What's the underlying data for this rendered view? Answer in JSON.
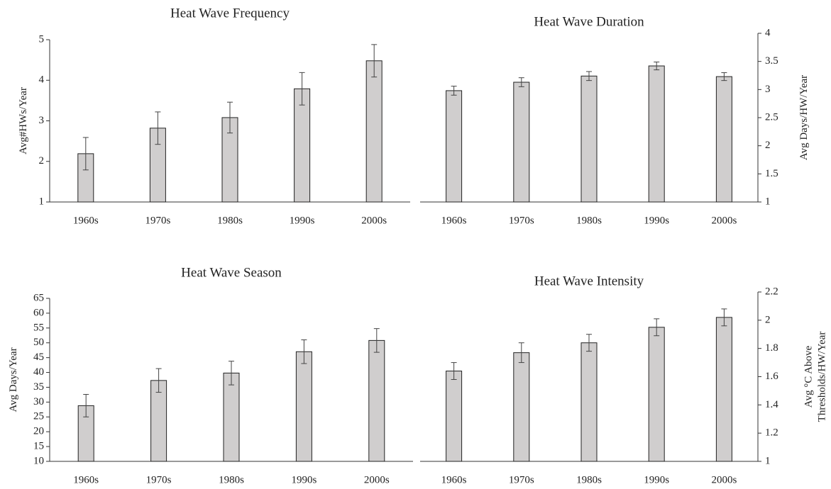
{
  "chart_data": [
    {
      "type": "bar",
      "title": "Heat Wave Frequency",
      "y_label": [
        "Avg#HWs/Year"
      ],
      "y_axis_side": "left",
      "categories": [
        "1960s",
        "1970s",
        "1980s",
        "1990s",
        "2000s"
      ],
      "values": [
        2.19,
        2.82,
        3.08,
        3.79,
        4.48
      ],
      "errors": [
        0.4,
        0.4,
        0.38,
        0.4,
        0.4
      ],
      "color": "#d0cece",
      "ylim": [
        1,
        5
      ],
      "yticks": [
        1,
        2,
        3,
        4,
        5
      ]
    },
    {
      "type": "bar",
      "title": "Heat Wave Duration",
      "y_label": [
        "Avg Days/HW/Year"
      ],
      "y_axis_side": "right",
      "categories": [
        "1960s",
        "1970s",
        "1980s",
        "1990s",
        "2000s"
      ],
      "values": [
        2.98,
        3.13,
        3.24,
        3.42,
        3.23
      ],
      "errors": [
        0.08,
        0.08,
        0.08,
        0.07,
        0.07
      ],
      "color": "#d0cece",
      "ylim": [
        1,
        4
      ],
      "yticks": [
        1,
        1.5,
        2,
        2.5,
        3,
        3.5,
        4
      ]
    },
    {
      "type": "bar",
      "title": "Heat Wave Season",
      "y_label": [
        "Avg Days/Year"
      ],
      "y_axis_side": "left",
      "categories": [
        "1960s",
        "1970s",
        "1980s",
        "1990s",
        "2000s"
      ],
      "values": [
        28.8,
        37.3,
        39.8,
        47,
        50.8
      ],
      "errors": [
        3.8,
        4,
        4,
        4,
        4
      ],
      "color": "#d0cece",
      "ylim": [
        10,
        65
      ],
      "yticks": [
        10,
        15,
        20,
        25,
        30,
        35,
        40,
        45,
        50,
        55,
        60,
        65
      ]
    },
    {
      "type": "bar",
      "title": "Heat Wave Intensity",
      "y_label": [
        "Avg °C Above",
        "Thresholds/HW/Year"
      ],
      "y_axis_side": "right",
      "categories": [
        "1960s",
        "1970s",
        "1980s",
        "1990s",
        "2000s"
      ],
      "values": [
        1.64,
        1.77,
        1.84,
        1.95,
        2.02
      ],
      "errors": [
        0.06,
        0.07,
        0.06,
        0.06,
        0.06
      ],
      "color": "#d0cece",
      "ylim": [
        1,
        2.2
      ],
      "yticks": [
        1,
        1.2,
        1.4,
        1.6,
        1.8,
        2,
        2.2
      ]
    }
  ]
}
